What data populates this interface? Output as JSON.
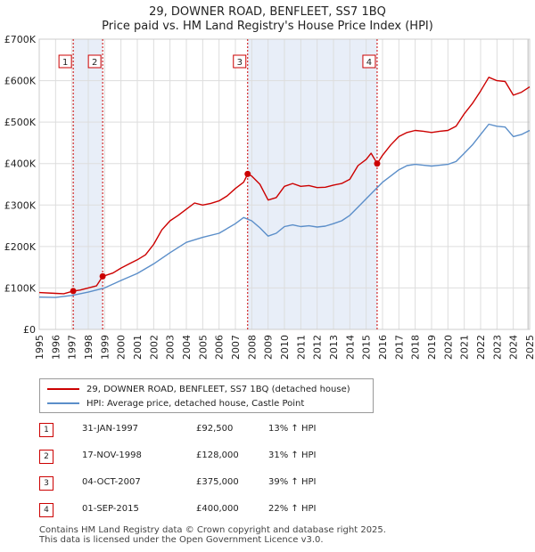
{
  "title": "29, DOWNER ROAD, BENFLEET, SS7 1BQ",
  "subtitle": "Price paid vs. HM Land Registry's House Price Index (HPI)",
  "chart_data": {
    "type": "line",
    "x_range": [
      1995,
      2025
    ],
    "ylim": [
      0,
      700000
    ],
    "y_ticks": [
      0,
      100000,
      200000,
      300000,
      400000,
      500000,
      600000,
      700000
    ],
    "y_tick_labels": [
      "£0",
      "£100K",
      "£200K",
      "£300K",
      "£400K",
      "£500K",
      "£600K",
      "£700K"
    ],
    "x_ticks": [
      1995,
      1996,
      1997,
      1998,
      1999,
      2000,
      2001,
      2002,
      2003,
      2004,
      2005,
      2006,
      2007,
      2008,
      2009,
      2010,
      2011,
      2012,
      2013,
      2014,
      2015,
      2016,
      2017,
      2018,
      2019,
      2020,
      2021,
      2022,
      2023,
      2024,
      2025
    ],
    "grid": true,
    "colors": {
      "property": "#cc0000",
      "hpi": "#5b8ec9",
      "shade": "#e8eef8",
      "grid": "#dddddd"
    },
    "shaded_ranges": [
      [
        1997.08,
        1998.88
      ],
      [
        2007.75,
        2015.67
      ]
    ],
    "series": [
      {
        "name": "29, DOWNER ROAD, BENFLEET, SS7 1BQ (detached house)",
        "points": [
          [
            1995,
            89000
          ],
          [
            1996,
            87000
          ],
          [
            1996.5,
            86000
          ],
          [
            1997.08,
            92500
          ],
          [
            1997.5,
            95000
          ],
          [
            1998,
            100000
          ],
          [
            1998.5,
            105000
          ],
          [
            1998.88,
            128000
          ],
          [
            1999.5,
            136000
          ],
          [
            2000,
            148000
          ],
          [
            2000.5,
            158000
          ],
          [
            2001,
            168000
          ],
          [
            2001.5,
            180000
          ],
          [
            2002,
            205000
          ],
          [
            2002.5,
            240000
          ],
          [
            2003,
            262000
          ],
          [
            2003.5,
            275000
          ],
          [
            2004,
            290000
          ],
          [
            2004.5,
            305000
          ],
          [
            2005,
            300000
          ],
          [
            2005.5,
            304000
          ],
          [
            2006,
            310000
          ],
          [
            2006.5,
            322000
          ],
          [
            2007,
            340000
          ],
          [
            2007.5,
            355000
          ],
          [
            2007.75,
            375000
          ],
          [
            2008,
            370000
          ],
          [
            2008.5,
            350000
          ],
          [
            2009,
            312000
          ],
          [
            2009.5,
            318000
          ],
          [
            2010,
            345000
          ],
          [
            2010.5,
            352000
          ],
          [
            2011,
            345000
          ],
          [
            2011.5,
            347000
          ],
          [
            2012,
            342000
          ],
          [
            2012.5,
            343000
          ],
          [
            2013,
            348000
          ],
          [
            2013.5,
            352000
          ],
          [
            2014,
            362000
          ],
          [
            2014.5,
            395000
          ],
          [
            2015,
            410000
          ],
          [
            2015.3,
            425000
          ],
          [
            2015.67,
            400000
          ],
          [
            2016,
            420000
          ],
          [
            2016.5,
            445000
          ],
          [
            2017,
            465000
          ],
          [
            2017.5,
            475000
          ],
          [
            2018,
            480000
          ],
          [
            2018.5,
            478000
          ],
          [
            2019,
            475000
          ],
          [
            2019.5,
            478000
          ],
          [
            2020,
            480000
          ],
          [
            2020.5,
            490000
          ],
          [
            2021,
            520000
          ],
          [
            2021.5,
            545000
          ],
          [
            2022,
            575000
          ],
          [
            2022.5,
            608000
          ],
          [
            2023,
            600000
          ],
          [
            2023.5,
            598000
          ],
          [
            2024,
            565000
          ],
          [
            2024.5,
            572000
          ],
          [
            2025,
            585000
          ]
        ]
      },
      {
        "name": "HPI: Average price, detached house, Castle Point",
        "points": [
          [
            1995,
            78000
          ],
          [
            1996,
            77000
          ],
          [
            1997,
            82000
          ],
          [
            1998,
            90000
          ],
          [
            1999,
            100000
          ],
          [
            2000,
            118000
          ],
          [
            2001,
            135000
          ],
          [
            2002,
            158000
          ],
          [
            2003,
            185000
          ],
          [
            2004,
            210000
          ],
          [
            2005,
            222000
          ],
          [
            2006,
            232000
          ],
          [
            2007,
            255000
          ],
          [
            2007.5,
            270000
          ],
          [
            2008,
            262000
          ],
          [
            2008.5,
            245000
          ],
          [
            2009,
            225000
          ],
          [
            2009.5,
            232000
          ],
          [
            2010,
            248000
          ],
          [
            2010.5,
            252000
          ],
          [
            2011,
            248000
          ],
          [
            2011.5,
            250000
          ],
          [
            2012,
            247000
          ],
          [
            2012.5,
            249000
          ],
          [
            2013,
            255000
          ],
          [
            2013.5,
            262000
          ],
          [
            2014,
            275000
          ],
          [
            2014.5,
            295000
          ],
          [
            2015,
            315000
          ],
          [
            2015.5,
            335000
          ],
          [
            2016,
            355000
          ],
          [
            2016.5,
            370000
          ],
          [
            2017,
            385000
          ],
          [
            2017.5,
            395000
          ],
          [
            2018,
            398000
          ],
          [
            2018.5,
            396000
          ],
          [
            2019,
            394000
          ],
          [
            2019.5,
            396000
          ],
          [
            2020,
            398000
          ],
          [
            2020.5,
            405000
          ],
          [
            2021,
            425000
          ],
          [
            2021.5,
            445000
          ],
          [
            2022,
            470000
          ],
          [
            2022.5,
            495000
          ],
          [
            2023,
            490000
          ],
          [
            2023.5,
            488000
          ],
          [
            2024,
            465000
          ],
          [
            2024.5,
            470000
          ],
          [
            2025,
            480000
          ]
        ]
      }
    ],
    "sale_markers": [
      {
        "label": "1",
        "x": 1997.08,
        "y": 92500
      },
      {
        "label": "2",
        "x": 1998.88,
        "y": 128000
      },
      {
        "label": "3",
        "x": 2007.75,
        "y": 375000
      },
      {
        "label": "4",
        "x": 2015.67,
        "y": 400000
      }
    ]
  },
  "legend": {
    "property_label": "29, DOWNER ROAD, BENFLEET, SS7 1BQ (detached house)",
    "hpi_label": "HPI: Average price, detached house, Castle Point"
  },
  "sales": [
    {
      "num": "1",
      "date": "31-JAN-1997",
      "price": "£92,500",
      "hpi": "13% ↑ HPI"
    },
    {
      "num": "2",
      "date": "17-NOV-1998",
      "price": "£128,000",
      "hpi": "31% ↑ HPI"
    },
    {
      "num": "3",
      "date": "04-OCT-2007",
      "price": "£375,000",
      "hpi": "39% ↑ HPI"
    },
    {
      "num": "4",
      "date": "01-SEP-2015",
      "price": "£400,000",
      "hpi": "22% ↑ HPI"
    }
  ],
  "footer": {
    "line1": "Contains HM Land Registry data © Crown copyright and database right 2025.",
    "line2": "This data is licensed under the Open Government Licence v3.0."
  }
}
